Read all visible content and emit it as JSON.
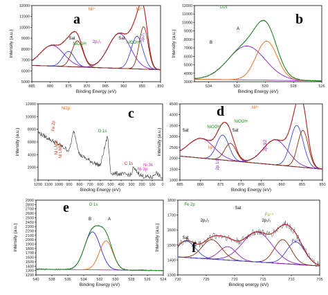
{
  "figure": {
    "panels": [
      {
        "id": "a",
        "panel_label": "a",
        "chart_type": "line",
        "xlabel": "Binding Energy (eV)",
        "ylabel": "Intensity (a.u.)",
        "xlim": [
          885,
          850
        ],
        "ylim": [
          5000,
          12000
        ],
        "xticks": [
          "885",
          "880",
          "875",
          "870",
          "865",
          "860",
          "855",
          "850"
        ],
        "yticks": [
          "5000",
          "6000",
          "7000",
          "8000",
          "9000",
          "10000",
          "11000",
          "12000"
        ],
        "annotations": [
          {
            "text": "Ni²⁺",
            "color": "#e8661a"
          },
          {
            "text": "Ni³⁺",
            "color": "#e8661a"
          },
          {
            "text": "2p₁/₂",
            "color": "#8a1fd0"
          },
          {
            "text": "2p₃/₂",
            "color": "#8a1fd0"
          },
          {
            "text": "NiOOH",
            "color": "#1a8a1a"
          },
          {
            "text": "NiOOH",
            "color": "#1a8a1a"
          },
          {
            "text": "Sat",
            "color": "#000000"
          },
          {
            "text": "Sat",
            "color": "#000000"
          }
        ],
        "peaks": [
          {
            "center": 879.5,
            "height": 1900,
            "width": 3.2,
            "color": "#8a1fd0"
          },
          {
            "center": 875.0,
            "height": 1400,
            "width": 1.6,
            "color": "#3a48d8"
          },
          {
            "center": 872.6,
            "height": 2400,
            "width": 1.5,
            "color": "#8b2a0a"
          },
          {
            "center": 861.2,
            "height": 3200,
            "width": 3.0,
            "color": "#8a1fd0"
          },
          {
            "center": 856.4,
            "height": 3000,
            "width": 1.6,
            "color": "#3a48d8"
          },
          {
            "center": 854.6,
            "height": 3900,
            "width": 1.2,
            "color": "#8b2a0a"
          }
        ],
        "baseline": {
          "left": 6500,
          "right": 6100
        }
      },
      {
        "id": "b",
        "panel_label": "b",
        "chart_type": "line",
        "xlabel": "Binding Energy (eV)",
        "ylabel": "Intensity (a.u.)",
        "xlim": [
          535,
          526
        ],
        "ylim": [
          3000,
          12000
        ],
        "xticks": [
          "534",
          "532",
          "530",
          "528",
          "526"
        ],
        "yticks": [
          "3000",
          "4000",
          "5000",
          "6000",
          "7000",
          "8000",
          "9000",
          "10000",
          "11000",
          "12000"
        ],
        "annotations": [
          {
            "text": "O1s",
            "color": "#1a8a1a"
          },
          {
            "text": "A",
            "color": "#000000"
          },
          {
            "text": "B",
            "color": "#000000"
          }
        ],
        "peaks": [
          {
            "center": 531.3,
            "height": 4000,
            "width": 1.3,
            "color": "#8a1fd0"
          },
          {
            "center": 529.9,
            "height": 4600,
            "width": 0.75,
            "color": "#e8661a"
          }
        ],
        "baseline": {
          "left": 3300,
          "right": 3100
        }
      },
      {
        "id": "c",
        "panel_label": "c",
        "chart_type": "line",
        "xlabel": "Binding Energy (eV)",
        "ylabel": "Intensity (a.u.)",
        "xlim": [
          1200,
          0
        ],
        "ylim": [
          0,
          12000
        ],
        "xticks": [
          "1200",
          "1100",
          "1000",
          "900",
          "800",
          "700",
          "600",
          "500",
          "400",
          "300",
          "200",
          "100",
          "0"
        ],
        "yticks": [
          "0",
          "2000",
          "4000",
          "6000",
          "8000",
          "10000",
          "12000"
        ],
        "annotations": [
          {
            "text": "Ni2p",
            "color": "#e8661a"
          },
          {
            "text": "Fe 2p",
            "color": "#c23a1a"
          },
          {
            "text": "Ni LMM",
            "color": "#c23a1a"
          },
          {
            "text": "Ni LMM",
            "color": "#c23a1a"
          },
          {
            "text": "O 1s",
            "color": "#1a8a1a"
          },
          {
            "text": "C 1s",
            "color": "#d01a1a"
          },
          {
            "text": "Ni 3p",
            "color": "#d01ac8"
          },
          {
            "text": "Ni 3s",
            "color": "#d01ac8"
          }
        ]
      },
      {
        "id": "d",
        "panel_label": "d",
        "chart_type": "line",
        "xlabel": "Binding Energy (eV)",
        "ylabel": "Intensity (a.u.)",
        "xlim": [
          885,
          850
        ],
        "ylim": [
          1000,
          4500
        ],
        "xticks": [
          "885",
          "880",
          "875",
          "870",
          "865",
          "860",
          "855",
          "850"
        ],
        "yticks": [
          "1000",
          "1500",
          "2000",
          "2500",
          "3000",
          "3500",
          "4000",
          "4500"
        ],
        "annotations": [
          {
            "text": "Ni³⁺",
            "color": "#e8661a"
          },
          {
            "text": "Ni³⁺",
            "color": "#e8661a"
          },
          {
            "text": "NiOOH",
            "color": "#1a8a1a"
          },
          {
            "text": "NiOOH",
            "color": "#1a8a1a"
          },
          {
            "text": "2p 1/2",
            "color": "#8a1fd0"
          },
          {
            "text": "2p 3/2",
            "color": "#8a1fd0"
          },
          {
            "text": "Sat",
            "color": "#000000"
          },
          {
            "text": "Sat",
            "color": "#000000"
          }
        ],
        "peaks": [
          {
            "center": 879.8,
            "height": 900,
            "width": 3.2,
            "color": "#8a1fd0"
          },
          {
            "center": 874.5,
            "height": 1150,
            "width": 1.5,
            "color": "#3a48d8"
          },
          {
            "center": 872.6,
            "height": 800,
            "width": 1.4,
            "color": "#8b2a0a"
          },
          {
            "center": 861.5,
            "height": 1150,
            "width": 3.0,
            "color": "#8a1fd0"
          },
          {
            "center": 856.3,
            "height": 1900,
            "width": 1.6,
            "color": "#3a48d8"
          },
          {
            "center": 854.8,
            "height": 1700,
            "width": 1.3,
            "color": "#8b2a0a"
          }
        ],
        "baseline": {
          "left": 2100,
          "right": 1500
        }
      },
      {
        "id": "e",
        "panel_label": "e",
        "chart_type": "line",
        "xlabel": "Binding Energy (eV)",
        "ylabel": "Intensity (a.u.)",
        "xlim": [
          540,
          524
        ],
        "ylim": [
          1200,
          2900
        ],
        "xticks": [
          "540",
          "538",
          "536",
          "534",
          "532",
          "530",
          "528",
          "526",
          "524"
        ],
        "yticks": [
          "1200",
          "1300",
          "1400",
          "1500",
          "1600",
          "1700",
          "1800",
          "1900",
          "2000",
          "2100",
          "2200",
          "2300",
          "2400",
          "2500",
          "2600",
          "2700",
          "2800",
          "2900"
        ],
        "annotations": [
          {
            "text": "O 1s",
            "color": "#1a8a1a"
          },
          {
            "text": "B",
            "color": "#000000"
          },
          {
            "text": "A",
            "color": "#000000"
          }
        ],
        "peaks": [
          {
            "center": 532.9,
            "height": 860,
            "width": 1.0,
            "color": "#2a2ad0"
          },
          {
            "center": 531.2,
            "height": 660,
            "width": 0.85,
            "color": "#e8661a"
          }
        ],
        "baseline": {
          "left": 1330,
          "right": 1300
        }
      },
      {
        "id": "f",
        "panel_label": "f",
        "chart_type": "line",
        "xlabel": "Binding energy (eV)",
        "ylabel": "Intensity (a.u.)",
        "xlim": [
          730,
          705
        ],
        "ylim": [
          1300,
          1800
        ],
        "xticks": [
          "730",
          "725",
          "720",
          "715",
          "710",
          "705"
        ],
        "yticks": [
          "1300",
          "1400",
          "1500",
          "1600",
          "1700",
          "1800"
        ],
        "annotations": [
          {
            "text": "Fe 2p",
            "color": "#1a8a1a"
          },
          {
            "text": "Sat",
            "color": "#000000"
          },
          {
            "text": "Sat",
            "color": "#000000"
          },
          {
            "text": "2p₁/₂",
            "color": "#000000"
          },
          {
            "text": "2p₃/₂",
            "color": "#000000"
          },
          {
            "text": "Fe⁺³",
            "color": "#b0a010"
          },
          {
            "text": "Fe⁺²",
            "color": "#2a2ad0"
          }
        ],
        "peaks": [
          {
            "center": 728.5,
            "height": 110,
            "width": 1.6,
            "color": "#3a48d8"
          },
          {
            "center": 724.0,
            "height": 130,
            "width": 1.7,
            "color": "#8b2a0a"
          },
          {
            "center": 721.2,
            "height": 90,
            "width": 1.5,
            "color": "#8a1fd0"
          },
          {
            "center": 716.0,
            "height": 200,
            "width": 2.6,
            "color": "#8a1fd0"
          },
          {
            "center": 711.5,
            "height": 160,
            "width": 1.5,
            "color": "#8b2a0a"
          },
          {
            "center": 709.2,
            "height": 150,
            "width": 1.6,
            "color": "#3a48d8"
          }
        ],
        "baseline": {
          "left": 1420,
          "right": 1360
        }
      }
    ]
  },
  "chart_data": [
    {
      "type": "line",
      "xlabel": "Binding Energy (eV)",
      "ylabel": "Intensity (a.u.)",
      "xlim": [
        885,
        850
      ],
      "ylim": [
        5000,
        12000
      ],
      "series": [
        {
          "values": [
            [
              885,
              6600
            ],
            [
              880,
              8100
            ],
            [
              875,
              7600
            ],
            [
              872.6,
              8900
            ],
            [
              868,
              6900
            ],
            [
              861,
              9300
            ],
            [
              856.5,
              9600
            ],
            [
              854.6,
              10700
            ],
            [
              852,
              7000
            ],
            [
              850,
              6100
            ]
          ]
        }
      ]
    },
    {
      "type": "line",
      "xlabel": "Binding Energy (eV)",
      "ylabel": "Intensity (a.u.)",
      "xlim": [
        535,
        526
      ],
      "ylim": [
        3000,
        12000
      ],
      "series": [
        {
          "values": [
            [
              535,
              3400
            ],
            [
              533,
              4600
            ],
            [
              531.5,
              7100
            ],
            [
              530.2,
              9600
            ],
            [
              529.5,
              8700
            ],
            [
              528.5,
              4900
            ],
            [
              527,
              3200
            ],
            [
              526,
              3100
            ]
          ]
        }
      ]
    },
    {
      "type": "line",
      "xlabel": "Binding Energy (eV)",
      "ylabel": "Intensity (a.u.)",
      "xlim": [
        1200,
        0
      ],
      "ylim": [
        0,
        12000
      ],
      "series": [
        {
          "values": [
            [
              1200,
              7500
            ],
            [
              1000,
              5600
            ],
            [
              900,
              4600
            ],
            [
              855,
              7800
            ],
            [
              800,
              4000
            ],
            [
              720,
              3200
            ],
            [
              650,
              2600
            ],
            [
              600,
              2300
            ],
            [
              530,
              7000
            ],
            [
              500,
              1100
            ],
            [
              300,
              800
            ],
            [
              285,
              1900
            ],
            [
              200,
              600
            ],
            [
              100,
              400
            ],
            [
              65,
              1200
            ],
            [
              0,
              200
            ]
          ]
        }
      ]
    },
    {
      "type": "line",
      "xlabel": "Binding Energy (eV)",
      "ylabel": "Intensity (a.u.)",
      "xlim": [
        885,
        850
      ],
      "ylim": [
        1000,
        4500
      ],
      "series": [
        {
          "values": [
            [
              885,
              2100
            ],
            [
              880,
              2900
            ],
            [
              874.5,
              3300
            ],
            [
              870,
              2500
            ],
            [
              865,
              2400
            ],
            [
              861,
              3200
            ],
            [
              856,
              3700
            ],
            [
              855,
              4000
            ],
            [
              852,
              2500
            ],
            [
              850,
              1500
            ]
          ]
        }
      ]
    },
    {
      "type": "line",
      "xlabel": "Binding Energy (eV)",
      "ylabel": "Intensity (a.u.)",
      "xlim": [
        540,
        524
      ],
      "ylim": [
        1200,
        2900
      ],
      "series": [
        {
          "values": [
            [
              540,
              1330
            ],
            [
              536,
              1380
            ],
            [
              534,
              1700
            ],
            [
              533,
              2150
            ],
            [
              532,
              2250
            ],
            [
              531,
              2050
            ],
            [
              530,
              1600
            ],
            [
              528,
              1320
            ],
            [
              524,
              1300
            ]
          ]
        }
      ]
    },
    {
      "type": "line",
      "xlabel": "Binding energy (eV)",
      "ylabel": "Intensity (a.u.)",
      "xlim": [
        730,
        705
      ],
      "ylim": [
        1300,
        1800
      ],
      "series": [
        {
          "values": [
            [
              730,
              1430
            ],
            [
              728,
              1520
            ],
            [
              724,
              1550
            ],
            [
              721,
              1520
            ],
            [
              716,
              1600
            ],
            [
              713,
              1580
            ],
            [
              711,
              1560
            ],
            [
              709,
              1500
            ],
            [
              707,
              1400
            ],
            [
              705,
              1370
            ]
          ]
        }
      ]
    }
  ]
}
